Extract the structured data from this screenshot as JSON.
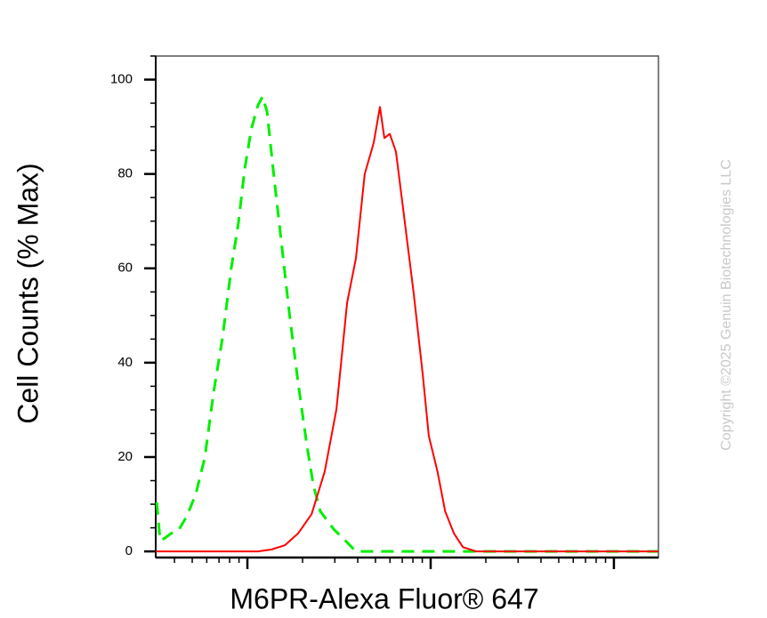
{
  "chart_data": {
    "type": "histogram-overlay",
    "xlabel": "M6PR-Alexa Fluor® 647",
    "ylabel": "Cell Counts (% Max)",
    "watermark": "Copyright ©2025 Genuin Biotechnologies LLC",
    "xscale": "log",
    "xlim": [
      3.16,
      1750
    ],
    "xticks": [
      10,
      100,
      1000
    ],
    "ylim": [
      -1.3,
      105
    ],
    "yticks": [
      0,
      20,
      40,
      60,
      80,
      100
    ],
    "series": [
      {
        "color": "#00ee00",
        "dashed": true,
        "x": [
          3.2,
          3.34,
          3.54,
          3.83,
          4.18,
          4.68,
          5.23,
          5.85,
          6.55,
          7.31,
          8.18,
          8.94,
          9.67,
          10.5,
          11.4,
          12.1,
          12.8,
          14.0,
          15.1,
          16.9,
          18.9,
          21.1,
          22.9,
          25.0,
          29.6,
          35.0,
          39.1,
          48.9,
          120,
          1750
        ],
        "values": [
          10.4,
          2.3,
          2.8,
          3.8,
          4.3,
          7.5,
          12.2,
          19.8,
          33.9,
          45.2,
          60.3,
          69.7,
          81.0,
          89.5,
          94.5,
          96.4,
          93.2,
          79.1,
          67.8,
          50.8,
          35.8,
          22.6,
          14.1,
          8.5,
          4.7,
          1.9,
          0,
          0,
          0,
          0
        ]
      },
      {
        "color": "#ff0000",
        "dashed": false,
        "x": [
          3.16,
          7.31,
          9.14,
          11.4,
          13.5,
          16.0,
          18.9,
          22.4,
          26.4,
          30.6,
          35.0,
          39.1,
          43.7,
          48.9,
          52.9,
          55.9,
          59.8,
          64.7,
          72.3,
          80.9,
          90.4,
          97.7,
          109,
          120,
          134,
          150,
          177,
          209,
          1750
        ],
        "values": [
          0,
          0,
          0,
          0,
          0.4,
          1.3,
          3.8,
          7.9,
          16.9,
          30.1,
          52.7,
          62.1,
          80.0,
          86.6,
          94.2,
          87.6,
          88.5,
          84.7,
          69.7,
          54.6,
          37.7,
          24.5,
          16.9,
          8.5,
          3.8,
          0.9,
          0,
          0,
          0
        ]
      }
    ]
  }
}
